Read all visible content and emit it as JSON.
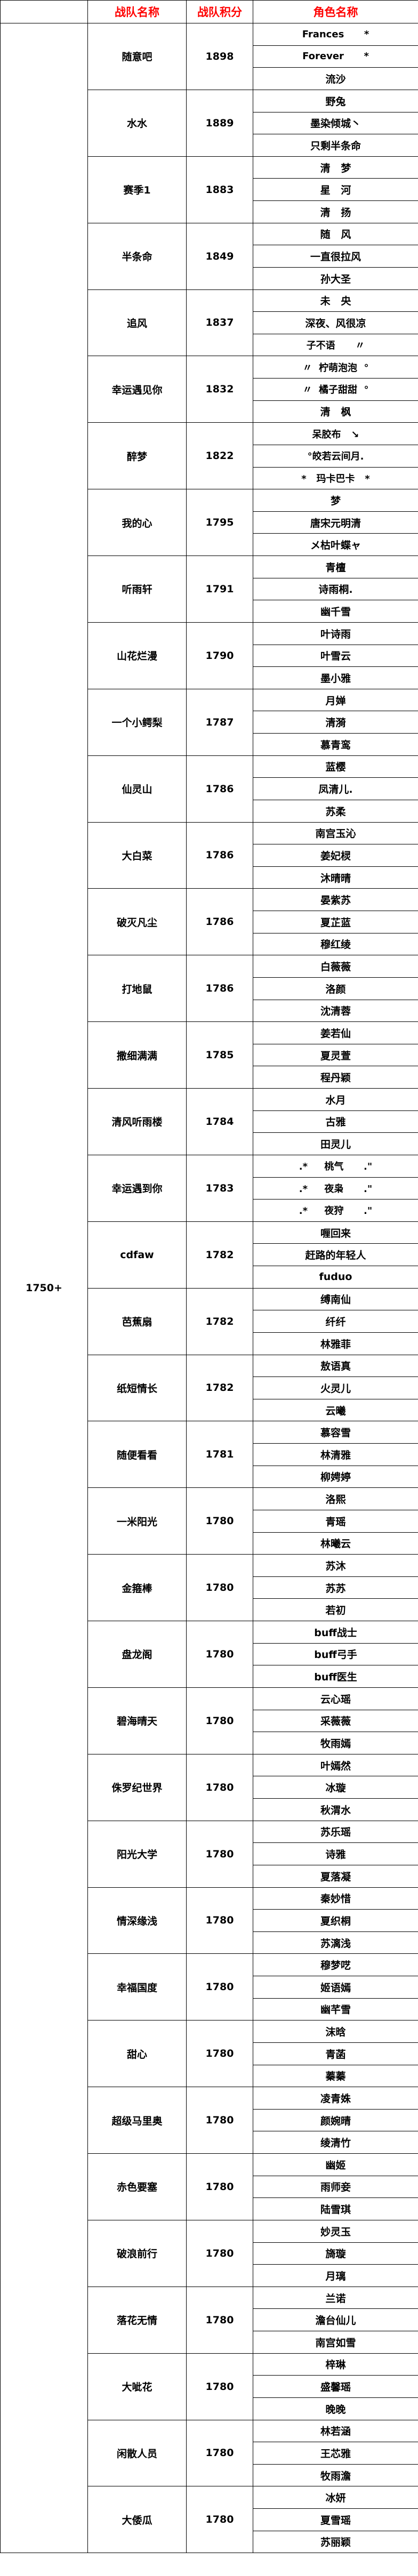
{
  "header": {
    "col1": "",
    "team_name": "战队名称",
    "team_score": "战队积分",
    "role_name": "角色名称",
    "header_color": "#ff0000"
  },
  "group_label": "1750+",
  "teams": [
    {
      "name": "随意吧",
      "score": "1898",
      "members": [
        "Frances      *",
        "Forever      *",
        "流沙"
      ]
    },
    {
      "name": "水水",
      "score": "1889",
      "members": [
        "野兔",
        "墨染倾城丶",
        "只剩半条命"
      ]
    },
    {
      "name": "赛季1",
      "score": "1883",
      "members": [
        "清   梦",
        "星   河",
        "清   扬"
      ]
    },
    {
      "name": "半条命",
      "score": "1849",
      "members": [
        "随   风",
        "一直很拉风",
        "孙大圣"
      ]
    },
    {
      "name": "追风",
      "score": "1837",
      "members": [
        "未   央",
        "深夜、风很凉",
        "子不语      〃"
      ]
    },
    {
      "name": "幸运遇见你",
      "score": "1832",
      "members": [
        "〃  柠萌泡泡  °",
        "〃  橘子甜甜  °",
        "清   枫"
      ]
    },
    {
      "name": "醉梦",
      "score": "1822",
      "members": [
        "呆胶布   ↘",
        "°皎若云间月.",
        "*   玛卡巴卡   *"
      ]
    },
    {
      "name": "我的心",
      "score": "1795",
      "members": [
        "梦",
        "唐宋元明清",
        "メ枯叶蝶ャ"
      ]
    },
    {
      "name": "听雨轩",
      "score": "1791",
      "members": [
        "青檀",
        "诗雨桐.",
        "幽千雪"
      ]
    },
    {
      "name": "山花烂漫",
      "score": "1790",
      "members": [
        "叶诗雨",
        "叶雪云",
        "墨小雅"
      ]
    },
    {
      "name": "一个小鳄梨",
      "score": "1787",
      "members": [
        "月婵",
        "清漪",
        "慕青鸾"
      ]
    },
    {
      "name": "仙灵山",
      "score": "1786",
      "members": [
        "蓝樱",
        "凤清儿.",
        "苏柔"
      ]
    },
    {
      "name": "大白菜",
      "score": "1786",
      "members": [
        "南宫玉沁",
        "姜妃棂",
        "沐晴晴"
      ]
    },
    {
      "name": "破灭凡尘",
      "score": "1786",
      "members": [
        "晏紫苏",
        "夏芷蓝",
        "穆红绫"
      ]
    },
    {
      "name": "打地鼠",
      "score": "1786",
      "members": [
        "白薇薇",
        "洛颜",
        "沈清蓉"
      ]
    },
    {
      "name": "撒细满满",
      "score": "1785",
      "members": [
        "姜若仙",
        "夏灵萱",
        "程丹颖"
      ]
    },
    {
      "name": "清风听雨楼",
      "score": "1784",
      "members": [
        "水月",
        "古雅",
        "田灵儿"
      ]
    },
    {
      "name": "幸运遇到你",
      "score": "1783",
      "members": [
        ".*     桃气      .\"",
        ".*     夜枭      .\"",
        ".*     夜狩      .\""
      ]
    },
    {
      "name": "cdfaw",
      "score": "1782",
      "members": [
        "喱回来",
        "赶路的年轻人",
        "fuduo"
      ]
    },
    {
      "name": "芭蕉扇",
      "score": "1782",
      "members": [
        "缚南仙",
        "纤纤",
        "林雅菲"
      ]
    },
    {
      "name": "纸短情长",
      "score": "1782",
      "members": [
        "敖语真",
        "火灵儿",
        "云曦"
      ]
    },
    {
      "name": "随便看看",
      "score": "1781",
      "members": [
        "慕容雪",
        "林清雅",
        "柳娉婷"
      ]
    },
    {
      "name": "一米阳光",
      "score": "1780",
      "members": [
        "洛熙",
        "青瑶",
        "林曦云"
      ]
    },
    {
      "name": "金箍棒",
      "score": "1780",
      "members": [
        "苏沐",
        "苏苏",
        "若初"
      ]
    },
    {
      "name": "盘龙阁",
      "score": "1780",
      "members": [
        "buff战士",
        "buff弓手",
        "buff医生"
      ]
    },
    {
      "name": "碧海晴天",
      "score": "1780",
      "members": [
        "云心瑶",
        "采薇薇",
        "牧雨嫣"
      ]
    },
    {
      "name": "侏罗纪世界",
      "score": "1780",
      "members": [
        "叶嫣然",
        "冰璇",
        "秋渭水"
      ]
    },
    {
      "name": "阳光大学",
      "score": "1780",
      "members": [
        "苏乐瑶",
        "诗雅",
        "夏落凝"
      ]
    },
    {
      "name": "情深缘浅",
      "score": "1780",
      "members": [
        "秦妙惜",
        "夏织桐",
        "苏漓浅"
      ]
    },
    {
      "name": "幸福国度",
      "score": "1780",
      "members": [
        "穆梦呓",
        "姬语嫣",
        "幽芊雪"
      ]
    },
    {
      "name": "甜心",
      "score": "1780",
      "members": [
        "沫晗",
        "青菡",
        "蓁蓁"
      ]
    },
    {
      "name": "超级马里奥",
      "score": "1780",
      "members": [
        "凌青姝",
        "颜婉晴",
        "绫清竹"
      ]
    },
    {
      "name": "赤色要塞",
      "score": "1780",
      "members": [
        "幽姬",
        "雨师妾",
        "陆雪琪"
      ]
    },
    {
      "name": "破浪前行",
      "score": "1780",
      "members": [
        "妙灵玉",
        "旖璇",
        "月璃"
      ]
    },
    {
      "name": "落花无情",
      "score": "1780",
      "members": [
        "兰诺",
        "澹台仙儿",
        "南宫如雪"
      ]
    },
    {
      "name": "大呲花",
      "score": "1780",
      "members": [
        "梓琳",
        "盛馨瑶",
        "晚晚"
      ]
    },
    {
      "name": "闲散人员",
      "score": "1780",
      "members": [
        "林若涵",
        "王芯雅",
        "牧雨澹"
      ]
    },
    {
      "name": "大倭瓜",
      "score": "1780",
      "members": [
        "冰妍",
        "夏雪瑶",
        "苏丽颖"
      ]
    }
  ]
}
